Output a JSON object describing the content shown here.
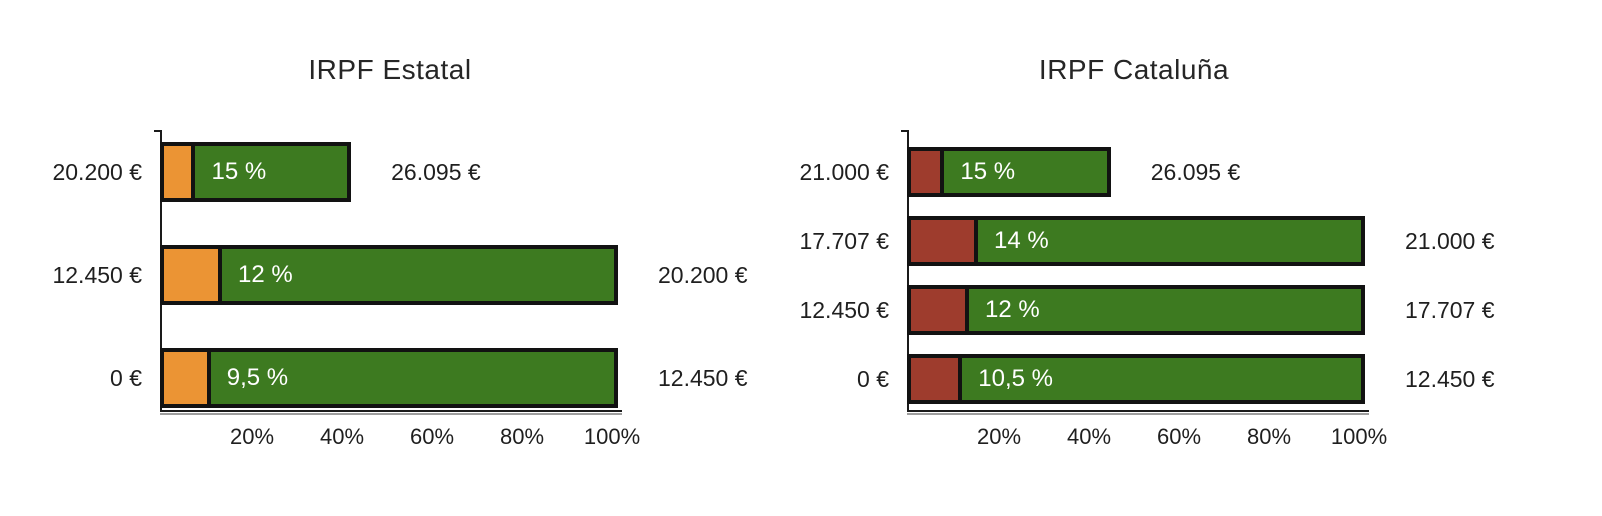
{
  "page": {
    "background_color": "#FFFFFF",
    "description_colors": {
      "green_bar": "#3D7A20",
      "orange_accent": "#EB9434",
      "red_accent": "#9E3C2D",
      "outline": "#121212",
      "axis_shadow": "#9E9E9E",
      "text": "#1F1F1F",
      "rate_text": "#FFFFFF"
    }
  },
  "chart_data": [
    {
      "type": "bar",
      "orientation": "horizontal-stacked",
      "title": "IRPF Estatal",
      "legend": "none",
      "grid": false,
      "x_axis": {
        "range_pct": [
          0,
          100
        ],
        "tick_values_pct": [
          20,
          40,
          60,
          80,
          100
        ],
        "tick_labels": [
          "20%",
          "40%",
          "60%",
          "80%",
          "100%"
        ]
      },
      "colors": {
        "bar": "#3D7A20",
        "accent": "#EB9434",
        "outline": "#121212"
      },
      "bars": [
        {
          "bracket_start_label": "20.200 €",
          "bracket_end_label": "26.095 €",
          "rate_label": "15 %",
          "rate_percent": 15,
          "bar_length_percent_of_axis": 40.7
        },
        {
          "bracket_start_label": "12.450 €",
          "bracket_end_label": "20.200 €",
          "rate_label": "12 %",
          "rate_percent": 12,
          "bar_length_percent_of_axis": 100
        },
        {
          "bracket_start_label": "0 €",
          "bracket_end_label": "12.450 €",
          "rate_label": "9,5 %",
          "rate_percent": 9.5,
          "bar_length_percent_of_axis": 100
        }
      ]
    },
    {
      "type": "bar",
      "orientation": "horizontal-stacked",
      "title": "IRPF Cataluña",
      "legend": "none",
      "grid": false,
      "x_axis": {
        "range_pct": [
          0,
          100
        ],
        "tick_values_pct": [
          20,
          40,
          60,
          80,
          100
        ],
        "tick_labels": [
          "20%",
          "40%",
          "60%",
          "80%",
          "100%"
        ]
      },
      "colors": {
        "bar": "#3D7A20",
        "accent": "#9E3C2D",
        "outline": "#121212"
      },
      "bars": [
        {
          "bracket_start_label": "21.000 €",
          "bracket_end_label": "26.095 €",
          "rate_label": "15 %",
          "rate_percent": 15,
          "bar_length_percent_of_axis": 43.5
        },
        {
          "bracket_start_label": "17.707 €",
          "bracket_end_label": "21.000 €",
          "rate_label": "14 %",
          "rate_percent": 14,
          "bar_length_percent_of_axis": 100
        },
        {
          "bracket_start_label": "12.450 €",
          "bracket_end_label": "17.707 €",
          "rate_label": "12 %",
          "rate_percent": 12,
          "bar_length_percent_of_axis": 100
        },
        {
          "bracket_start_label": "0 €",
          "bracket_end_label": "12.450 €",
          "rate_label": "10,5 %",
          "rate_percent": 10.5,
          "bar_length_percent_of_axis": 100
        }
      ]
    }
  ]
}
